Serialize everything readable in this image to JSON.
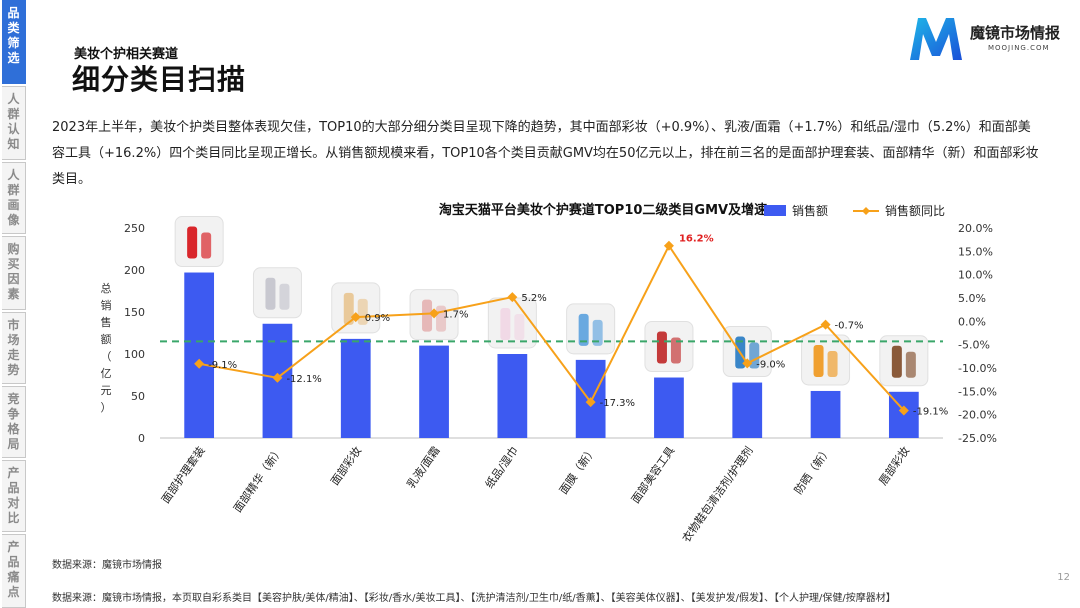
{
  "nav": {
    "items": [
      {
        "label": "品类筛选",
        "active": true
      },
      {
        "label": "人群认知",
        "active": false
      },
      {
        "label": "人群画像",
        "active": false
      },
      {
        "label": "购买因素",
        "active": false
      },
      {
        "label": "市场走势",
        "active": false
      },
      {
        "label": "竞争格局",
        "active": false
      },
      {
        "label": "产品对比",
        "active": false
      },
      {
        "label": "产品痛点",
        "active": false
      }
    ]
  },
  "header": {
    "subtitle": "美妆个护相关赛道",
    "title": "细分类目扫描"
  },
  "logo": {
    "name": "魔镜市场情报",
    "url": "MOOJING.COM"
  },
  "paragraph": "2023年上半年，美妆个护类目整体表现欠佳，TOP10的大部分细分类目呈现下降的趋势，其中面部彩妆（+0.9%）、乳液/面霜（+1.7%）和纸品/湿巾（5.2%）和面部美容工具（+16.2%）四个类目同比呈现正增长。从销售额规模来看，TOP10各个类目贡献GMV均在50亿元以上，排在前三名的是面部护理套装、面部精华（新）和面部彩妆类目。",
  "chart_data": {
    "type": "bar",
    "title": "淘宝天猫平台美妆个护赛道TOP10二级类目GMV及增速",
    "categories": [
      "面部护理套装",
      "面部精华（新）",
      "面部彩妆",
      "乳液/面霜",
      "纸品/湿巾",
      "面膜（新）",
      "面部美容工具",
      "衣物鞋包清洁剂/护理剂",
      "防晒（新）",
      "唇部彩妆"
    ],
    "series": [
      {
        "name": "销售额",
        "type": "bar",
        "axis": "left",
        "color": "#3d5af1",
        "values": [
          197,
          136,
          118,
          110,
          100,
          93,
          72,
          66,
          56,
          55
        ]
      },
      {
        "name": "销售额同比",
        "type": "line",
        "axis": "right",
        "color": "#f7a11a",
        "values": [
          -9.1,
          -12.1,
          0.9,
          1.7,
          5.2,
          -17.3,
          16.2,
          -9.0,
          -0.7,
          -19.1
        ]
      }
    ],
    "point_labels": [
      "-9.1%",
      "-12.1%",
      "0.9%",
      "1.7%",
      "5.2%",
      "-17.3%",
      "16.2%",
      "-9.0%",
      "-0.7%",
      "-19.1%"
    ],
    "highlight_label_color": "#e02020",
    "ylabel": "总销售额（亿元）",
    "ylim": [
      0,
      250
    ],
    "yticks": [
      "0",
      "50",
      "100",
      "150",
      "200",
      "250"
    ],
    "y2lim": [
      -25,
      20
    ],
    "y2ticks": [
      "-25.0%",
      "-20.0%",
      "-15.0%",
      "-10.0%",
      "-5.0%",
      "0.0%",
      "5.0%",
      "10.0%",
      "15.0%",
      "20.0%"
    ],
    "reference_line": {
      "value": 115,
      "color": "#3aa66a",
      "style": "dashed"
    },
    "legend_position": "top-right",
    "grid": false
  },
  "footer": {
    "source_short": "数据来源：魔镜市场情报",
    "source_long": "数据来源：魔镜市场情报，本页取自彩系类目【美容护肤/美体/精油】、【彩妆/香水/美妆工具】、【洗护清洁剂/卫生巾/纸/香薰】、【美容美体仪器】、【美发护发/假发】、【个人护理/保健/按摩器材】",
    "page_number": "12"
  }
}
